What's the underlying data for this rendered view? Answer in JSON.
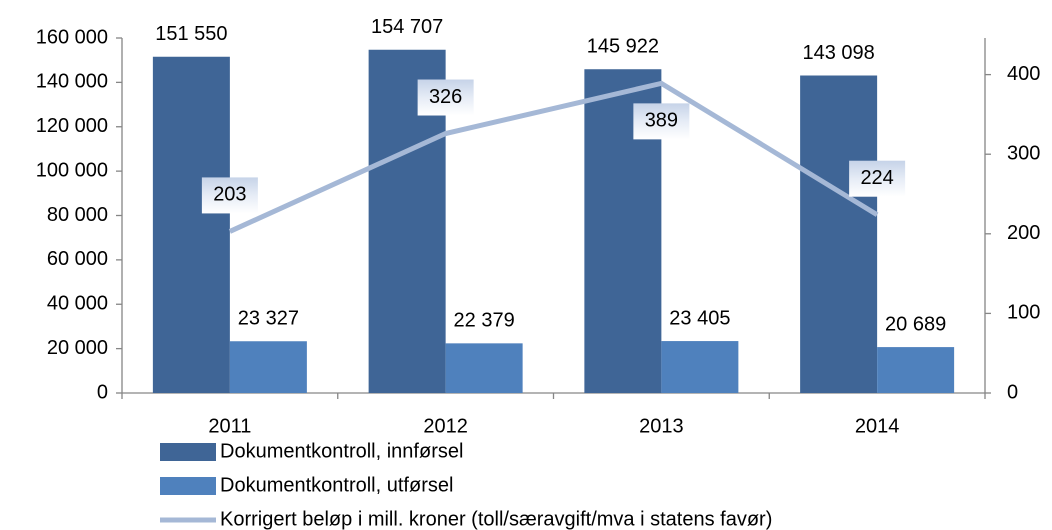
{
  "chart_data": {
    "type": "bar",
    "categories": [
      "2011",
      "2012",
      "2013",
      "2014"
    ],
    "series": [
      {
        "name": "Dokumentkontroll, innførsel",
        "color": "#3f6596",
        "values": [
          151550,
          154707,
          145922,
          143098
        ],
        "value_labels": [
          "151 550",
          "154 707",
          "145 922",
          "143 098"
        ]
      },
      {
        "name": "Dokumentkontroll, utførsel",
        "color": "#4f81bd",
        "values": [
          23327,
          22379,
          23405,
          20689
        ],
        "value_labels": [
          "23 327",
          "22 379",
          "23 405",
          "20 689"
        ]
      },
      {
        "name": "Korrigert beløp i mill. kroner (toll/særavgift/mva i statens favør)",
        "color": "#a5b8d6",
        "type": "line",
        "axis": "y2",
        "values": [
          203,
          326,
          389,
          224
        ]
      }
    ],
    "ylim": [
      0,
      160000
    ],
    "yticks": [
      {
        "value": 0,
        "label": "0"
      },
      {
        "value": 20000,
        "label": "20 000"
      },
      {
        "value": 40000,
        "label": "40 000"
      },
      {
        "value": 60000,
        "label": "60 000"
      },
      {
        "value": 80000,
        "label": "80 000"
      },
      {
        "value": 100000,
        "label": "100 000"
      },
      {
        "value": 120000,
        "label": "120 000"
      },
      {
        "value": 140000,
        "label": "140 000"
      },
      {
        "value": 160000,
        "label": "160 000"
      }
    ],
    "y2lim": [
      0,
      446
    ],
    "y2ticks": [
      0,
      100,
      200,
      300,
      400
    ],
    "grid": false,
    "legend": "bottom"
  }
}
